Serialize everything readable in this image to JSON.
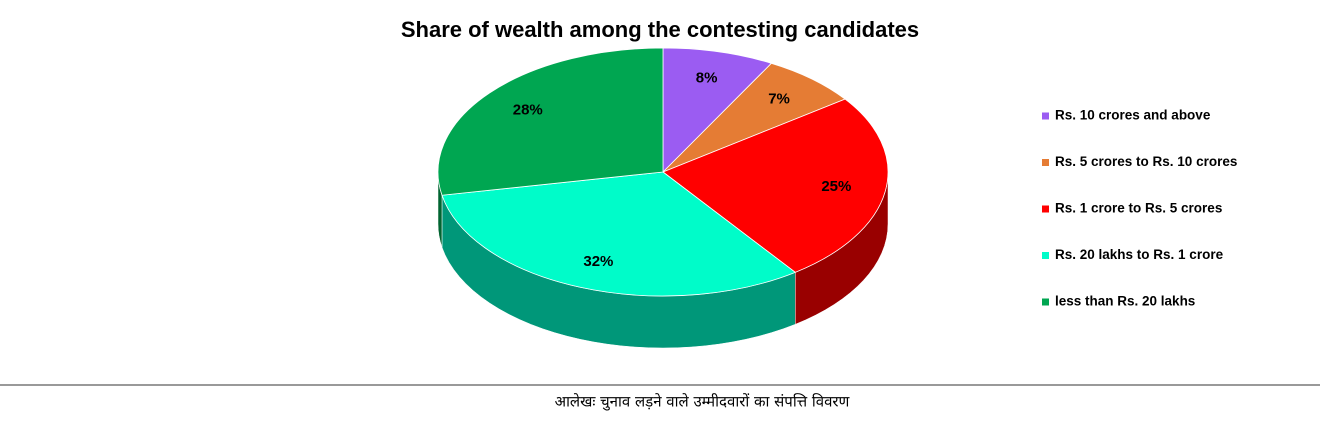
{
  "chart_data": {
    "type": "pie3d",
    "title": "Share of wealth among the contesting candidates",
    "categories": [
      "Rs. 10 crores and above",
      "Rs. 5 crores to Rs. 10 crores",
      "Rs. 1 crore to Rs. 5 crores",
      "Rs. 20 lakhs to Rs. 1 crore",
      "less than Rs. 20 lakhs"
    ],
    "values": [
      8,
      7,
      25,
      32,
      28
    ],
    "value_labels": [
      "8%",
      "7%",
      "25%",
      "32%",
      "28%"
    ],
    "colors": [
      "#9b5cf2",
      "#e57c34",
      "#ff0000",
      "#00fcc9",
      "#00a651"
    ],
    "legend": "right"
  },
  "caption": "आलेखः चुनाव लड़ने वाले उम्मीदवारों का संपत्ति विवरण"
}
